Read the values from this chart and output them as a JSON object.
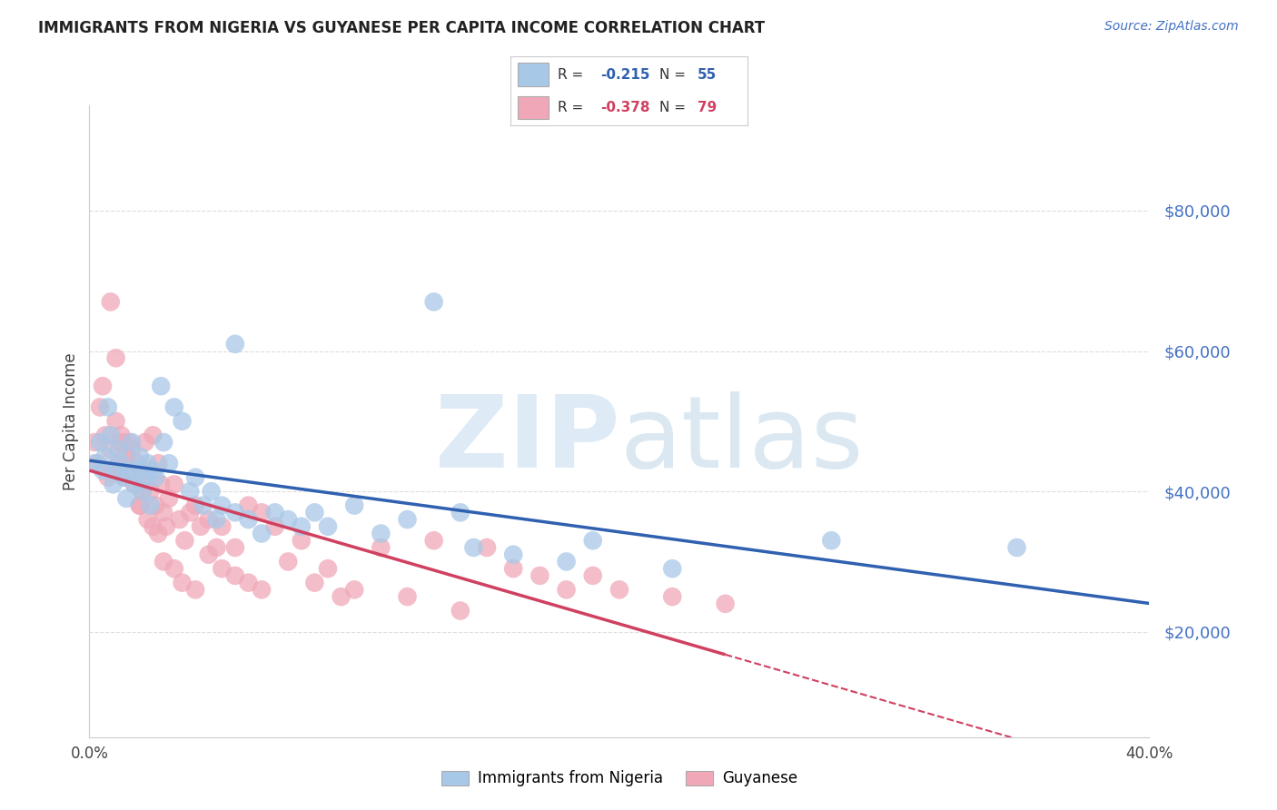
{
  "title": "IMMIGRANTS FROM NIGERIA VS GUYANESE PER CAPITA INCOME CORRELATION CHART",
  "source": "Source: ZipAtlas.com",
  "ylabel": "Per Capita Income",
  "yticks": [
    20000,
    40000,
    60000,
    80000
  ],
  "ytick_labels": [
    "$20,000",
    "$40,000",
    "$60,000",
    "$80,000"
  ],
  "xlim": [
    0.0,
    0.4
  ],
  "ylim": [
    5000,
    95000
  ],
  "blue_color": "#a8c8e8",
  "pink_color": "#f0a8b8",
  "blue_line_color": "#3060b0",
  "pink_line_color": "#d04060",
  "background_color": "#ffffff",
  "grid_color": "#dddddd",
  "nigeria_x": [
    0.002,
    0.004,
    0.005,
    0.006,
    0.007,
    0.008,
    0.009,
    0.01,
    0.011,
    0.012,
    0.013,
    0.014,
    0.015,
    0.016,
    0.017,
    0.018,
    0.019,
    0.02,
    0.021,
    0.022,
    0.023,
    0.024,
    0.025,
    0.027,
    0.028,
    0.03,
    0.032,
    0.035,
    0.038,
    0.04,
    0.043,
    0.046,
    0.048,
    0.05,
    0.055,
    0.06,
    0.065,
    0.07,
    0.075,
    0.08,
    0.085,
    0.09,
    0.1,
    0.11,
    0.12,
    0.14,
    0.16,
    0.19,
    0.22,
    0.28,
    0.13,
    0.055,
    0.145,
    0.18,
    0.35
  ],
  "nigeria_y": [
    44000,
    47000,
    43000,
    45000,
    52000,
    48000,
    41000,
    43000,
    46000,
    44000,
    42000,
    39000,
    43000,
    47000,
    41000,
    43000,
    45000,
    40000,
    42000,
    44000,
    38000,
    43000,
    42000,
    55000,
    47000,
    44000,
    52000,
    50000,
    40000,
    42000,
    38000,
    40000,
    36000,
    38000,
    37000,
    36000,
    34000,
    37000,
    36000,
    35000,
    37000,
    35000,
    38000,
    34000,
    36000,
    37000,
    31000,
    33000,
    29000,
    33000,
    67000,
    61000,
    32000,
    30000,
    32000
  ],
  "guyanese_x": [
    0.002,
    0.003,
    0.004,
    0.005,
    0.006,
    0.007,
    0.008,
    0.009,
    0.01,
    0.011,
    0.012,
    0.013,
    0.014,
    0.015,
    0.016,
    0.017,
    0.018,
    0.019,
    0.02,
    0.021,
    0.022,
    0.023,
    0.024,
    0.025,
    0.026,
    0.027,
    0.028,
    0.029,
    0.03,
    0.032,
    0.034,
    0.036,
    0.038,
    0.04,
    0.042,
    0.045,
    0.048,
    0.05,
    0.055,
    0.06,
    0.065,
    0.07,
    0.075,
    0.08,
    0.085,
    0.09,
    0.095,
    0.1,
    0.11,
    0.12,
    0.13,
    0.14,
    0.15,
    0.16,
    0.17,
    0.18,
    0.19,
    0.2,
    0.22,
    0.24,
    0.008,
    0.01,
    0.012,
    0.015,
    0.017,
    0.019,
    0.02,
    0.022,
    0.024,
    0.026,
    0.028,
    0.032,
    0.035,
    0.04,
    0.045,
    0.05,
    0.055,
    0.06,
    0.065
  ],
  "guyanese_y": [
    47000,
    44000,
    52000,
    55000,
    48000,
    42000,
    46000,
    43000,
    50000,
    44000,
    47000,
    42000,
    45000,
    43000,
    46000,
    41000,
    44000,
    38000,
    42000,
    47000,
    43000,
    40000,
    48000,
    38000,
    44000,
    41000,
    37000,
    35000,
    39000,
    41000,
    36000,
    33000,
    37000,
    38000,
    35000,
    36000,
    32000,
    35000,
    32000,
    38000,
    37000,
    35000,
    30000,
    33000,
    27000,
    29000,
    25000,
    26000,
    32000,
    25000,
    33000,
    23000,
    32000,
    29000,
    28000,
    26000,
    28000,
    26000,
    25000,
    24000,
    67000,
    59000,
    48000,
    47000,
    43000,
    38000,
    40000,
    36000,
    35000,
    34000,
    30000,
    29000,
    27000,
    26000,
    31000,
    29000,
    28000,
    27000,
    26000
  ]
}
